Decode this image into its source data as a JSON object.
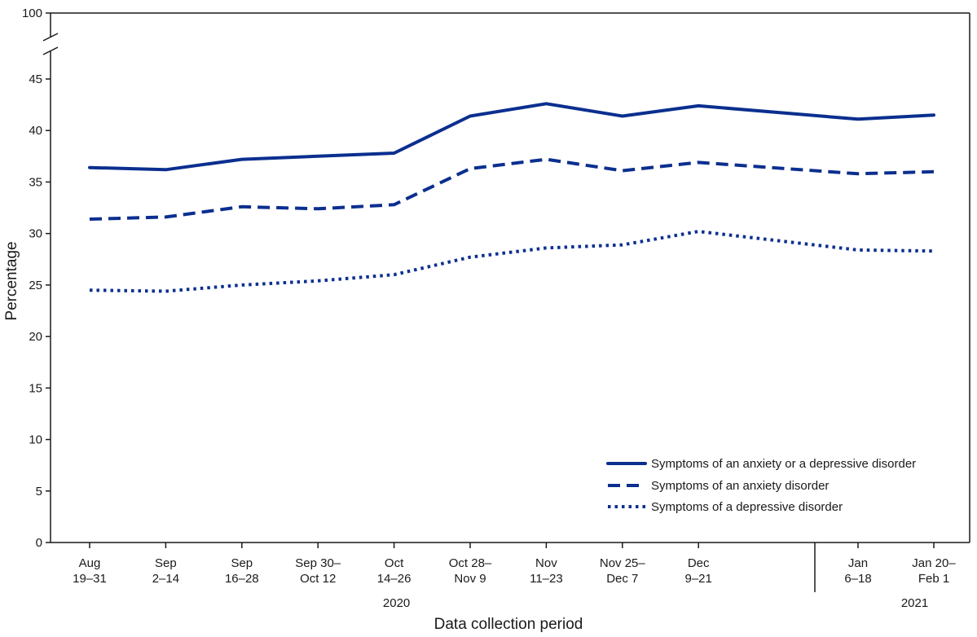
{
  "chart_data": {
    "type": "line",
    "xlabel": "Data collection period",
    "ylabel": "Percentage",
    "ylim": [
      0,
      45
    ],
    "y_axis_break": {
      "top_label": "100"
    },
    "yticks": [
      "0",
      "5",
      "10",
      "15",
      "20",
      "25",
      "30",
      "35",
      "40",
      "45"
    ],
    "categories": [
      [
        "Aug",
        "19–31"
      ],
      [
        "Sep",
        "2–14"
      ],
      [
        "Sep",
        "16–28"
      ],
      [
        "Sep 30–",
        "Oct 12"
      ],
      [
        "Oct",
        "14–26"
      ],
      [
        "Oct 28–",
        "Nov 9"
      ],
      [
        "Nov",
        "11–23"
      ],
      [
        "Nov 25–",
        "Dec 7"
      ],
      [
        "Dec",
        "9–21"
      ],
      [
        "Jan",
        "6–18"
      ],
      [
        "Jan 20–",
        "Feb 1"
      ]
    ],
    "years": [
      {
        "label": "2020"
      },
      {
        "label": "2021"
      }
    ],
    "series": [
      {
        "name": "Symptoms of an anxiety or a depressive disorder",
        "style": "solid",
        "values": [
          36.4,
          36.2,
          37.2,
          37.5,
          37.8,
          41.4,
          42.6,
          41.4,
          42.4,
          41.1,
          41.5
        ]
      },
      {
        "name": "Symptoms of an anxiety disorder",
        "style": "dashed",
        "values": [
          31.4,
          31.6,
          32.6,
          32.4,
          32.8,
          36.3,
          37.2,
          36.1,
          36.9,
          35.8,
          36.0
        ]
      },
      {
        "name": "Symptoms of a depressive disorder",
        "style": "dotted",
        "values": [
          24.5,
          24.4,
          25.0,
          25.4,
          26.0,
          27.7,
          28.6,
          28.9,
          30.2,
          28.4,
          28.3
        ]
      }
    ],
    "legend_position": "bottom-right",
    "colors": {
      "line": "#0b2f8f",
      "axis": "#1a1a1a"
    },
    "grid": false
  }
}
